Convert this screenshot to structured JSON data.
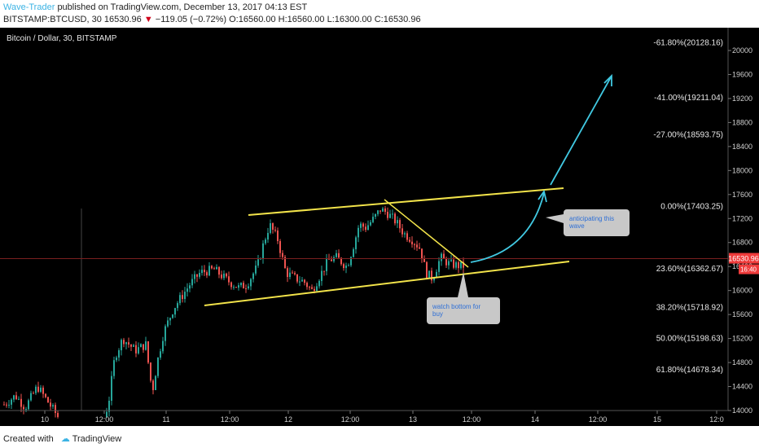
{
  "header": {
    "author": "Wave-Trader",
    "published_text": "published on TradingView.com, December 13, 2017 04:13 EST",
    "symbol_line": "BITSTAMP:BTCUSD, 30",
    "last_price": "16530.96",
    "change_arrow": "▼",
    "change": "−119.05 (−0.72%)",
    "ohlc": "O:16560.00 H:16560.00 L:16300.00 C:16530.96"
  },
  "chart_data": {
    "type": "candlestick",
    "title": "Bitcoin / Dollar, 30, BITSTAMP",
    "y_ticks": [
      14000,
      14400,
      14800,
      15200,
      15600,
      16000,
      16400,
      16800,
      17200,
      17600,
      18000,
      18400,
      18800,
      19200,
      19600,
      20000
    ],
    "ylim": [
      13970,
      20500
    ],
    "x_ticks": [
      "10",
      "12:00",
      "11",
      "12:00",
      "12",
      "12:00",
      "13",
      "12:00",
      "14",
      "12:00",
      "15",
      "12:0"
    ],
    "price_label": "16530.96",
    "price_label2": "16:40",
    "fib_levels": [
      {
        "label": "-61.80%(20128.16)",
        "price": 20128.16
      },
      {
        "label": "-41.00%(19211.04)",
        "price": 19211.04
      },
      {
        "label": "-27.00%(18593.75)",
        "price": 18593.75
      },
      {
        "label": "0.00%(17403.25)",
        "price": 17403.25
      },
      {
        "label": "23.60%(16362.67)",
        "price": 16362.67
      },
      {
        "label": "38.20%(15718.92)",
        "price": 15718.92
      },
      {
        "label": "50.00%(15198.63)",
        "price": 15198.63
      },
      {
        "label": "61.80%(14678.34)",
        "price": 14678.34
      }
    ],
    "annotations": [
      {
        "text_lines": [
          "anticipating this",
          "wave"
        ]
      },
      {
        "text_lines": [
          "watch bottom for",
          "buy"
        ]
      }
    ],
    "colors": {
      "up": "#26a69a",
      "down": "#ef5350",
      "trend": "#f2e34a",
      "arrow": "#41c9e2",
      "price": "#ef3b3b"
    }
  },
  "footer": {
    "created": "Created with",
    "brand": "TradingView"
  }
}
